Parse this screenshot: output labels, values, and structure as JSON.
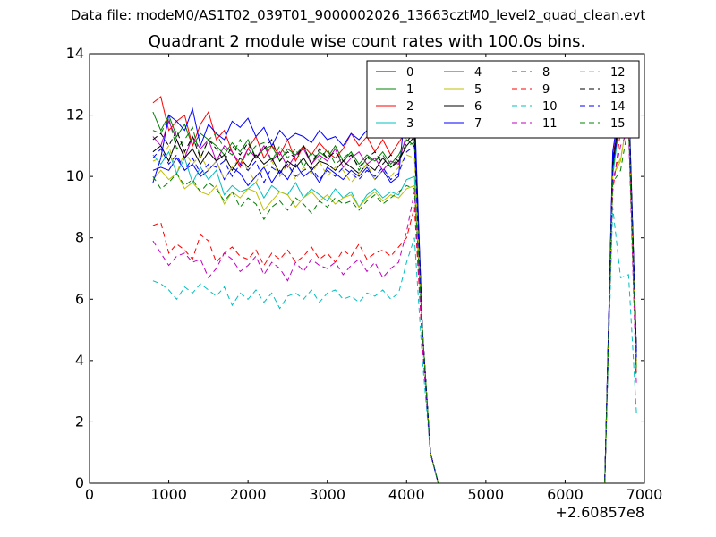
{
  "chart_data": {
    "type": "line",
    "suptitle": "Data file: modeM0/AS1T02_039T01_9000002026_13663cztM0_level2_quad_clean.evt",
    "title": "Quadrant 2 module wise count rates with 100.0s bins.",
    "xlabel": "",
    "ylabel": "",
    "xlim": [
      0,
      7000
    ],
    "ylim": [
      0,
      14
    ],
    "x_offset_label": "+2.60857e8",
    "xticks": [
      "0",
      "1000",
      "2000",
      "3000",
      "4000",
      "5000",
      "6000",
      "7000"
    ],
    "yticks": [
      "0",
      "2",
      "4",
      "6",
      "8",
      "10",
      "12",
      "14"
    ],
    "grid": false,
    "legend": {
      "placement": "top-right",
      "columns": 4
    },
    "x": {
      "segment1": [
        800,
        900,
        1000,
        1100,
        1200,
        1300,
        1400,
        1500,
        1600,
        1700,
        1800,
        1900,
        2000,
        2100,
        2200,
        2300,
        2400,
        2500,
        2600,
        2700,
        2800,
        2900,
        3000,
        3100,
        3200,
        3300,
        3400,
        3500,
        3600,
        3700,
        3800,
        3900,
        4000,
        4100,
        4200,
        4300,
        4400,
        4500
      ],
      "segment2": [
        6500,
        6600,
        6700,
        6800,
        6900
      ]
    },
    "series": [
      {
        "name": "0",
        "color": "#0000ff",
        "dash": "solid",
        "segment1": [
          10.2,
          10.3,
          10.2,
          10.6,
          10.2,
          10.4,
          10.0,
          10.2,
          10.5,
          9.9,
          10.3,
          10.1,
          9.7,
          10.0,
          10.3,
          9.8,
          10.2,
          9.9,
          10.4,
          10.0,
          10.2,
          9.8,
          10.3,
          10.1,
          9.9,
          10.2,
          10.0,
          10.3,
          9.9,
          10.2,
          9.8,
          10.0,
          12.7,
          12.2,
          5.0,
          1.0,
          0,
          0
        ],
        "segment2": [
          0,
          10.5,
          12.3,
          12.0,
          4.0
        ]
      },
      {
        "name": "1",
        "color": "#008000",
        "dash": "solid",
        "segment1": [
          12.1,
          11.5,
          12.0,
          11.3,
          11.7,
          11.0,
          11.4,
          11.2,
          11.0,
          10.7,
          11.1,
          10.8,
          11.2,
          10.6,
          10.9,
          11.0,
          10.5,
          10.9,
          10.7,
          11.0,
          10.4,
          10.8,
          10.6,
          11.0,
          10.5,
          10.8,
          10.4,
          10.7,
          10.5,
          10.8,
          10.4,
          10.7,
          11.2,
          11.0,
          5.0,
          1.0,
          0,
          0
        ],
        "segment2": [
          0,
          10.2,
          12.2,
          12.5,
          4.2
        ]
      },
      {
        "name": "2",
        "color": "#ff0000",
        "dash": "solid",
        "segment1": [
          12.4,
          12.6,
          11.5,
          11.8,
          12.0,
          11.0,
          11.7,
          12.1,
          11.2,
          11.5,
          10.8,
          10.3,
          10.9,
          11.3,
          10.6,
          11.0,
          10.7,
          11.2,
          10.5,
          11.0,
          10.7,
          11.1,
          10.8,
          10.6,
          10.9,
          11.4,
          11.0,
          11.3,
          10.8,
          11.2,
          10.7,
          11.1,
          11.5,
          11.2,
          5.0,
          1.0,
          0,
          0
        ],
        "segment2": [
          0,
          10.4,
          12.2,
          12.5,
          4.0
        ]
      },
      {
        "name": "3",
        "color": "#00bfbf",
        "dash": "solid",
        "segment1": [
          10.7,
          10.4,
          10.8,
          10.1,
          10.6,
          9.8,
          10.3,
          9.9,
          10.2,
          9.4,
          9.7,
          9.5,
          9.6,
          9.8,
          9.3,
          9.7,
          9.5,
          9.4,
          9.8,
          9.3,
          9.6,
          9.4,
          9.2,
          9.6,
          9.3,
          9.5,
          9.0,
          9.4,
          9.6,
          9.3,
          9.5,
          9.4,
          9.9,
          10.0,
          5.0,
          1.0,
          0,
          0
        ],
        "segment2": [
          0,
          10.0,
          12.0,
          12.4,
          3.8
        ]
      },
      {
        "name": "4",
        "color": "#bf00bf",
        "dash": "solid",
        "segment1": [
          11.3,
          11.0,
          11.8,
          11.2,
          10.6,
          11.3,
          10.9,
          11.2,
          10.5,
          11.0,
          10.8,
          10.4,
          10.9,
          10.6,
          11.0,
          10.5,
          10.8,
          10.3,
          10.7,
          10.9,
          10.4,
          10.7,
          10.5,
          10.9,
          10.3,
          10.6,
          10.8,
          10.4,
          10.6,
          10.2,
          10.5,
          10.4,
          11.4,
          11.2,
          5.0,
          1.0,
          0,
          0
        ],
        "segment2": [
          0,
          10.6,
          12.3,
          12.6,
          4.2
        ]
      },
      {
        "name": "5",
        "color": "#bfbf00",
        "dash": "solid",
        "segment1": [
          9.9,
          10.2,
          9.9,
          10.1,
          9.6,
          9.8,
          9.5,
          9.4,
          9.7,
          9.1,
          9.5,
          9.3,
          9.6,
          9.5,
          8.9,
          9.2,
          9.5,
          9.4,
          9.0,
          9.3,
          9.5,
          9.2,
          9.4,
          9.1,
          9.3,
          9.4,
          9.0,
          9.3,
          9.5,
          9.2,
          9.4,
          9.3,
          9.6,
          9.7,
          5.0,
          1.0,
          0,
          0
        ],
        "segment2": [
          0,
          10.0,
          10.5,
          12.2,
          3.9
        ]
      },
      {
        "name": "6",
        "color": "#000000",
        "dash": "solid",
        "segment1": [
          10.8,
          11.0,
          10.5,
          11.2,
          10.6,
          10.9,
          10.4,
          10.8,
          10.5,
          10.7,
          10.2,
          10.6,
          10.3,
          10.7,
          10.4,
          10.6,
          10.1,
          10.5,
          10.3,
          10.6,
          10.2,
          10.5,
          10.4,
          10.2,
          10.5,
          10.3,
          10.1,
          10.4,
          10.2,
          10.6,
          10.3,
          10.5,
          11.0,
          11.3,
          5.0,
          1.0,
          0,
          0
        ],
        "segment2": [
          0,
          10.4,
          12.1,
          12.4,
          4.3
        ]
      },
      {
        "name": "7",
        "color": "#0000ff",
        "dash": "solid",
        "segment1": [
          9.8,
          10.6,
          12.0,
          11.8,
          11.5,
          12.2,
          11.0,
          11.7,
          11.4,
          11.2,
          11.8,
          11.6,
          11.9,
          11.3,
          11.6,
          11.0,
          11.5,
          11.2,
          11.4,
          11.3,
          11.1,
          11.5,
          11.2,
          11.3,
          11.0,
          11.4,
          11.2,
          11.5,
          11.3,
          11.6,
          11.4,
          11.8,
          12.9,
          12.0,
          5.0,
          1.0,
          0,
          0
        ],
        "segment2": [
          0,
          10.8,
          12.5,
          12.8,
          4.3
        ]
      },
      {
        "name": "8",
        "color": "#008000",
        "dash": "dashed",
        "segment1": [
          11.5,
          11.4,
          11.9,
          10.9,
          11.2,
          11.6,
          10.6,
          11.2,
          11.4,
          10.9,
          10.7,
          11.2,
          10.7,
          11.0,
          11.1,
          10.5,
          11.0,
          10.6,
          10.9,
          10.3,
          10.8,
          10.5,
          10.9,
          10.4,
          10.6,
          10.8,
          10.2,
          10.6,
          10.5,
          10.7,
          10.3,
          10.6,
          11.0,
          11.1,
          5.0,
          1.0,
          0,
          0
        ],
        "segment2": [
          0,
          10.2,
          12.0,
          12.4,
          4.0
        ]
      },
      {
        "name": "9",
        "color": "#ff0000",
        "dash": "dashed",
        "segment1": [
          8.4,
          8.5,
          7.5,
          7.8,
          7.6,
          7.3,
          8.1,
          7.9,
          7.2,
          7.5,
          7.7,
          7.4,
          7.3,
          7.6,
          7.1,
          7.5,
          7.3,
          7.6,
          7.2,
          7.4,
          7.7,
          7.3,
          7.5,
          7.2,
          7.6,
          7.4,
          7.8,
          7.3,
          7.5,
          7.6,
          7.4,
          7.7,
          8.0,
          9.0,
          4.5,
          1.0,
          0,
          0
        ],
        "segment2": [
          0,
          9.5,
          11.5,
          11.8,
          3.5
        ]
      },
      {
        "name": "10",
        "color": "#00bfbf",
        "dash": "dashed",
        "segment1": [
          6.6,
          6.5,
          6.3,
          6.0,
          6.4,
          6.2,
          6.5,
          6.3,
          6.1,
          6.4,
          5.8,
          6.2,
          6.0,
          6.3,
          5.9,
          6.2,
          5.7,
          6.1,
          6.2,
          6.0,
          6.3,
          5.9,
          6.2,
          6.3,
          6.0,
          6.1,
          5.9,
          6.2,
          6.1,
          6.3,
          6.0,
          6.2,
          7.2,
          8.0,
          4.0,
          1.0,
          0,
          0
        ],
        "segment2": [
          0,
          9.0,
          6.7,
          6.8,
          2.3
        ]
      },
      {
        "name": "11",
        "color": "#bf00bf",
        "dash": "dashed",
        "segment1": [
          7.9,
          7.5,
          7.1,
          7.4,
          7.5,
          7.2,
          7.3,
          6.7,
          7.0,
          7.5,
          7.3,
          6.9,
          7.1,
          7.4,
          6.8,
          7.2,
          7.0,
          6.6,
          7.2,
          6.9,
          7.3,
          7.1,
          7.0,
          7.2,
          6.8,
          7.1,
          7.3,
          6.9,
          7.2,
          6.7,
          7.0,
          7.2,
          8.2,
          9.5,
          4.5,
          1.0,
          0,
          0
        ],
        "segment2": [
          0,
          9.8,
          11.0,
          11.5,
          3.2
        ]
      },
      {
        "name": "12",
        "color": "#bfbf00",
        "dash": "dashed",
        "segment1": [
          10.5,
          10.6,
          11.0,
          10.1,
          10.8,
          10.4,
          10.7,
          10.2,
          10.5,
          9.9,
          10.3,
          10.6,
          10.2,
          9.8,
          10.3,
          10.5,
          10.0,
          10.4,
          9.9,
          10.3,
          10.1,
          10.5,
          10.0,
          10.3,
          10.2,
          9.8,
          10.1,
          10.4,
          9.9,
          10.2,
          10.0,
          10.3,
          10.7,
          10.6,
          5.0,
          1.0,
          0,
          0
        ],
        "segment2": [
          0,
          10.0,
          10.6,
          12.0,
          3.8
        ]
      },
      {
        "name": "13",
        "color": "#000000",
        "dash": "dashed",
        "segment1": [
          11.2,
          11.4,
          11.0,
          11.5,
          10.8,
          11.3,
          10.6,
          11.2,
          10.9,
          10.5,
          11.0,
          10.7,
          11.1,
          10.6,
          10.9,
          11.2,
          10.5,
          10.8,
          10.6,
          11.0,
          10.4,
          10.9,
          10.6,
          10.8,
          10.5,
          10.7,
          10.3,
          10.6,
          10.8,
          10.4,
          10.7,
          10.5,
          11.1,
          11.5,
          5.0,
          1.0,
          0,
          0
        ],
        "segment2": [
          0,
          10.5,
          12.2,
          12.6,
          4.4
        ]
      },
      {
        "name": "14",
        "color": "#0000ff",
        "dash": "dashed",
        "segment1": [
          10.6,
          10.9,
          10.4,
          10.7,
          10.2,
          10.6,
          10.1,
          10.4,
          10.3,
          10.5,
          10.0,
          10.4,
          10.2,
          10.5,
          9.8,
          10.3,
          10.1,
          10.4,
          10.0,
          10.2,
          10.3,
          9.9,
          10.2,
          10.0,
          10.3,
          10.1,
          9.9,
          10.2,
          10.0,
          10.3,
          9.9,
          10.1,
          10.8,
          11.0,
          5.0,
          1.0,
          0,
          0
        ],
        "segment2": [
          0,
          10.3,
          12.0,
          12.3,
          4.1
        ]
      },
      {
        "name": "15",
        "color": "#008000",
        "dash": "dashed",
        "segment1": [
          10.0,
          9.6,
          9.8,
          10.1,
          9.7,
          9.9,
          9.5,
          9.8,
          9.6,
          9.2,
          9.5,
          9.0,
          9.3,
          9.1,
          8.6,
          9.0,
          9.2,
          8.9,
          9.3,
          9.1,
          8.8,
          9.2,
          9.0,
          9.3,
          9.1,
          9.2,
          8.9,
          9.2,
          9.4,
          9.1,
          9.3,
          9.5,
          9.7,
          9.6,
          5.0,
          1.0,
          0,
          0
        ],
        "segment2": [
          0,
          9.8,
          10.2,
          11.7,
          3.6
        ]
      }
    ]
  }
}
